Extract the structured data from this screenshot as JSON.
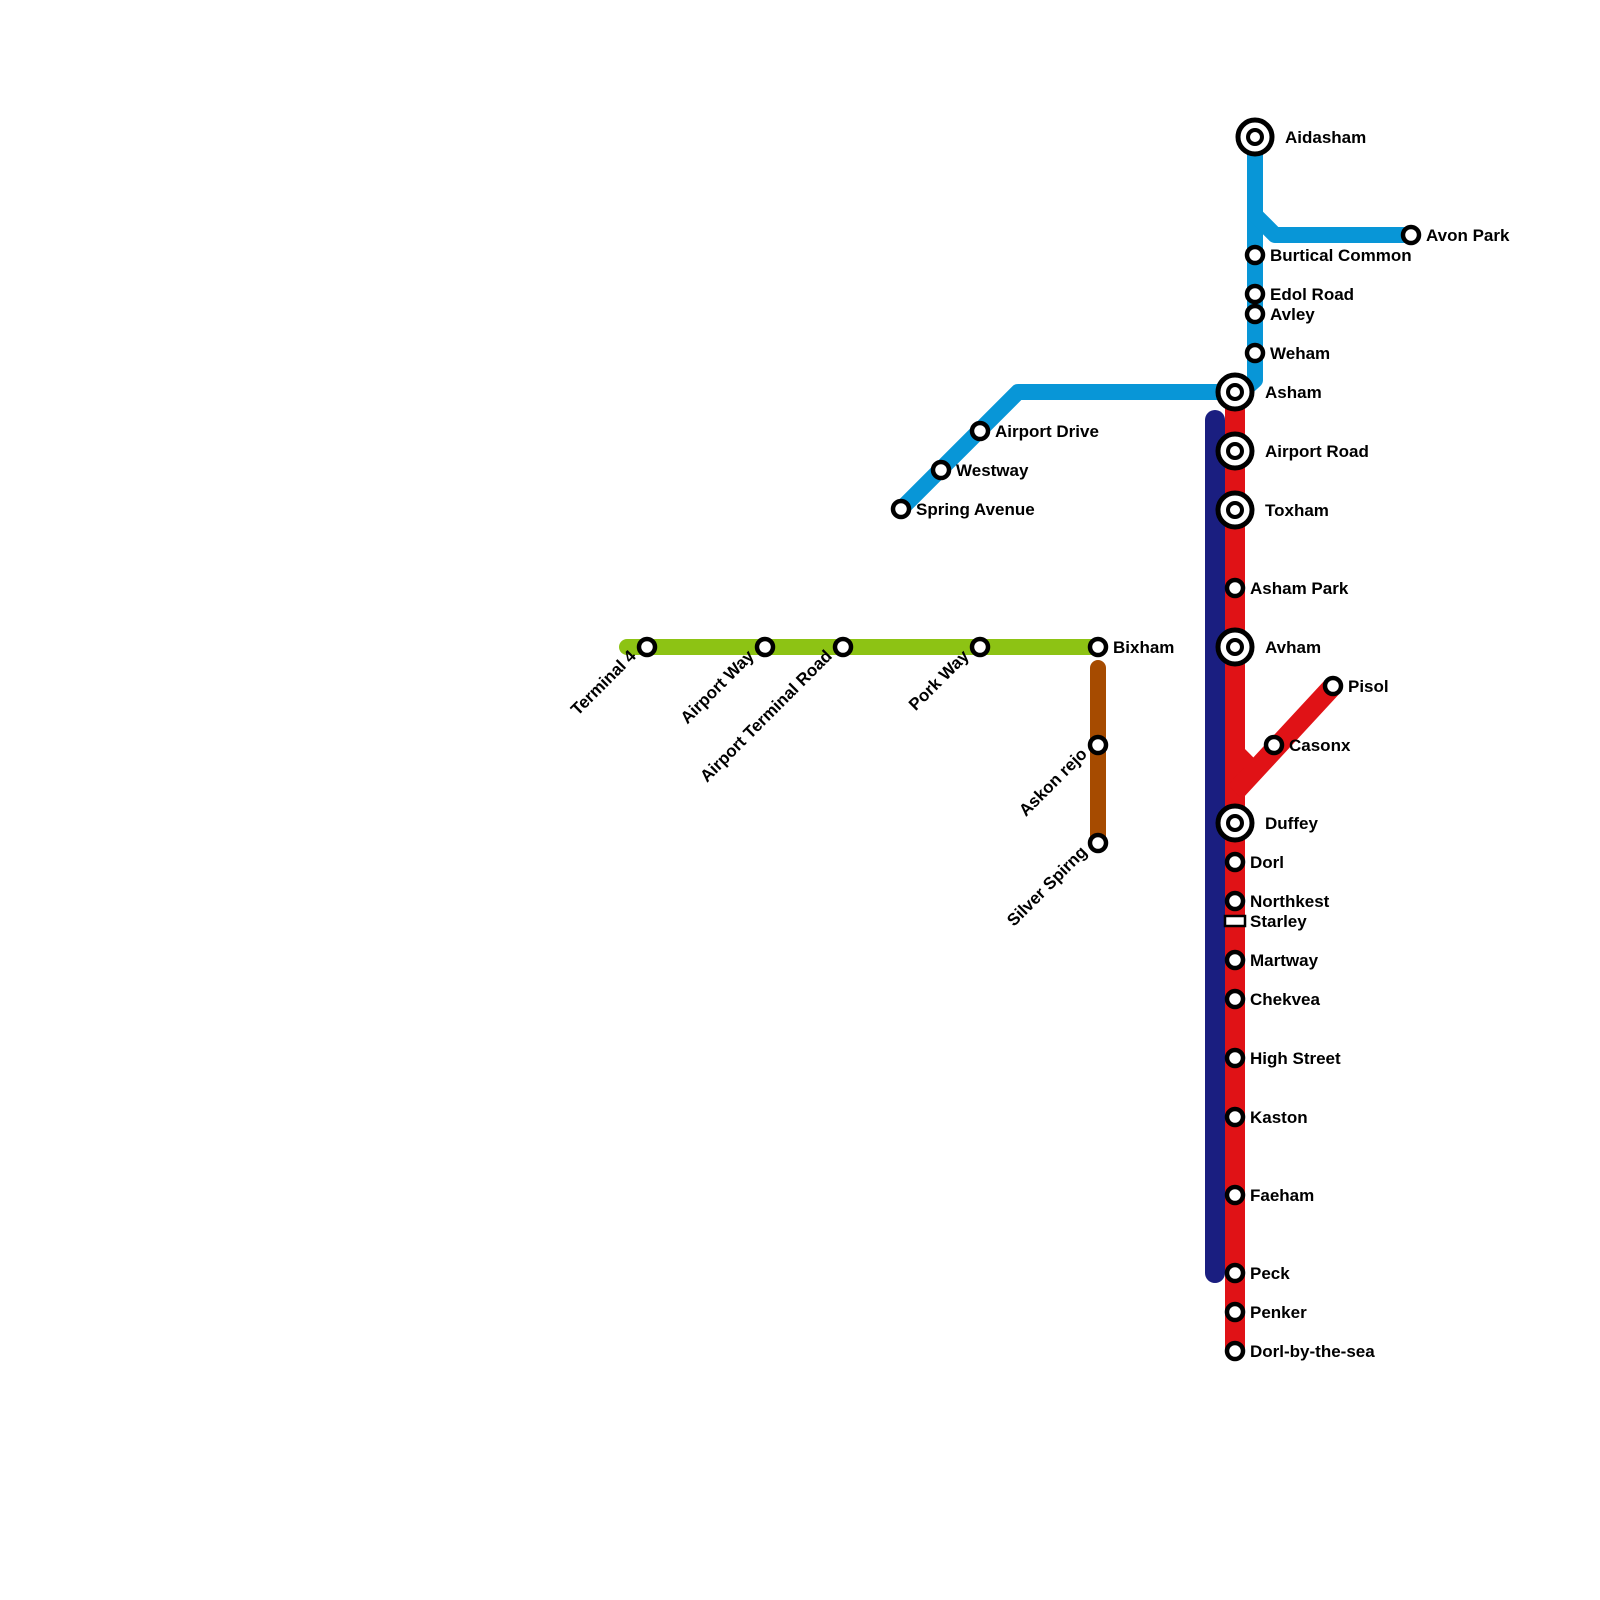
{
  "colors": {
    "blue": "#0896d7",
    "navy": "#1a1e80",
    "red": "#e01216",
    "green": "#8dc314",
    "brown": "#a64b00"
  },
  "stations": [
    {
      "name": "Aidasham",
      "type": "interchange"
    },
    {
      "name": "Avon Park",
      "type": "stop"
    },
    {
      "name": "Burtical Common",
      "type": "stop"
    },
    {
      "name": "Edol Road",
      "type": "stop"
    },
    {
      "name": "Avley",
      "type": "stop"
    },
    {
      "name": "Weham",
      "type": "stop"
    },
    {
      "name": "Asham",
      "type": "interchange"
    },
    {
      "name": "Airport Drive",
      "type": "stop"
    },
    {
      "name": "Westway",
      "type": "stop"
    },
    {
      "name": "Spring Avenue",
      "type": "stop"
    },
    {
      "name": "Airport Road",
      "type": "interchange"
    },
    {
      "name": "Toxham",
      "type": "interchange"
    },
    {
      "name": "Asham Park",
      "type": "stop"
    },
    {
      "name": "Avham",
      "type": "interchange"
    },
    {
      "name": "Pisol",
      "type": "stop"
    },
    {
      "name": "Casonx",
      "type": "stop"
    },
    {
      "name": "Duffey",
      "type": "interchange"
    },
    {
      "name": "Dorl",
      "type": "stop"
    },
    {
      "name": "Northkest",
      "type": "stop"
    },
    {
      "name": "Starley",
      "type": "halt"
    },
    {
      "name": "Martway",
      "type": "stop"
    },
    {
      "name": "Chekvea",
      "type": "stop"
    },
    {
      "name": "High Street",
      "type": "stop"
    },
    {
      "name": "Kaston",
      "type": "stop"
    },
    {
      "name": "Faeham",
      "type": "stop"
    },
    {
      "name": "Peck",
      "type": "stop"
    },
    {
      "name": "Penker",
      "type": "stop"
    },
    {
      "name": "Dorl-by-the-sea",
      "type": "stop"
    },
    {
      "name": "Bixham",
      "type": "stop"
    },
    {
      "name": "Terminal 4",
      "type": "stop"
    },
    {
      "name": "Airport Way",
      "type": "stop"
    },
    {
      "name": "Airport Terminal Road",
      "type": "stop"
    },
    {
      "name": "Pork Way",
      "type": "stop"
    },
    {
      "name": "Askon rejo",
      "type": "stop"
    },
    {
      "name": "Silver Spirng",
      "type": "stop"
    }
  ]
}
